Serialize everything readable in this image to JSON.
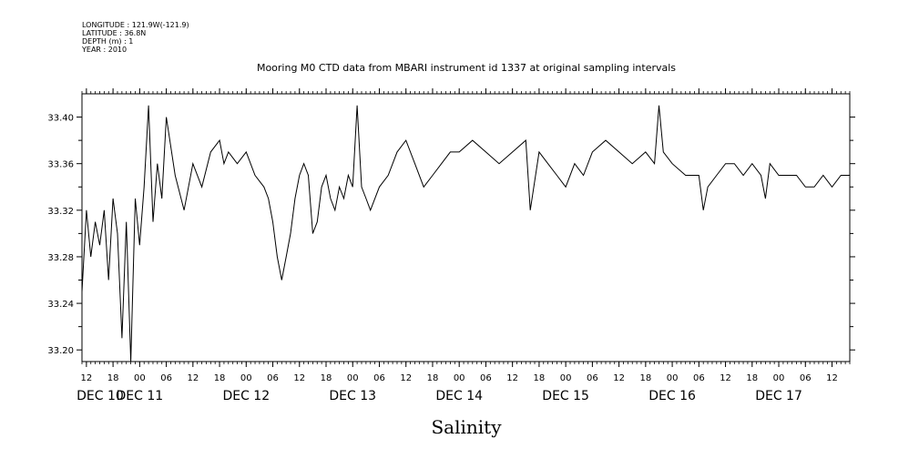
{
  "meta": {
    "longitude": "LONGITUDE : 121.9W(-121.9)",
    "latitude": "LATITUDE : 36.8N",
    "depth": "DEPTH (m) : 1",
    "year": "YEAR : 2010"
  },
  "chart_data": {
    "type": "line",
    "title": "Mooring M0 CTD data from MBARI instrument id 1337 at original sampling intervals",
    "xlabel": "Salinity",
    "ylabel": "",
    "ylim": [
      33.19,
      33.42
    ],
    "xlim": [
      "2010-12-10T11:00",
      "2010-12-17T16:00"
    ],
    "y_ticks": [
      "33.20",
      "33.24",
      "33.28",
      "33.32",
      "33.36",
      "33.40"
    ],
    "x_hour_ticks": [
      "12",
      "18",
      "00",
      "06",
      "12",
      "18",
      "00",
      "06",
      "12",
      "18",
      "00",
      "06",
      "12",
      "18",
      "00",
      "06",
      "12",
      "18",
      "00",
      "06",
      "12",
      "18",
      "00",
      "06",
      "12",
      "18",
      "00",
      "06",
      "12",
      "18",
      "00",
      "06",
      "12"
    ],
    "x_day_labels": [
      "DEC 10",
      "DEC 11",
      "DEC 12",
      "DEC 13",
      "DEC 14",
      "DEC 15",
      "DEC 16",
      "DEC 17"
    ],
    "grid": false,
    "series": [
      {
        "x": [
          "2010-12-10T11:00",
          "2010-12-10T12:00",
          "2010-12-10T13:00",
          "2010-12-10T14:00",
          "2010-12-10T15:00",
          "2010-12-10T16:00",
          "2010-12-10T17:00",
          "2010-12-10T18:00",
          "2010-12-10T19:00",
          "2010-12-10T20:00",
          "2010-12-10T21:00",
          "2010-12-10T22:00",
          "2010-12-10T23:00",
          "2010-12-11T00:00",
          "2010-12-11T01:00",
          "2010-12-11T02:00",
          "2010-12-11T03:00",
          "2010-12-11T04:00",
          "2010-12-11T05:00",
          "2010-12-11T06:00",
          "2010-12-11T08:00",
          "2010-12-11T10:00",
          "2010-12-11T12:00",
          "2010-12-11T14:00",
          "2010-12-11T16:00",
          "2010-12-11T18:00",
          "2010-12-11T19:00",
          "2010-12-11T20:00",
          "2010-12-11T22:00",
          "2010-12-12T00:00",
          "2010-12-12T02:00",
          "2010-12-12T04:00",
          "2010-12-12T05:00",
          "2010-12-12T06:00",
          "2010-12-12T07:00",
          "2010-12-12T08:00",
          "2010-12-12T09:00",
          "2010-12-12T10:00",
          "2010-12-12T11:00",
          "2010-12-12T12:00",
          "2010-12-12T13:00",
          "2010-12-12T14:00",
          "2010-12-12T15:00",
          "2010-12-12T16:00",
          "2010-12-12T17:00",
          "2010-12-12T18:00",
          "2010-12-12T19:00",
          "2010-12-12T20:00",
          "2010-12-12T21:00",
          "2010-12-12T22:00",
          "2010-12-12T23:00",
          "2010-12-13T00:00",
          "2010-12-13T01:00",
          "2010-12-13T02:00",
          "2010-12-13T03:00",
          "2010-12-13T04:00",
          "2010-12-13T06:00",
          "2010-12-13T08:00",
          "2010-12-13T10:00",
          "2010-12-13T12:00",
          "2010-12-13T14:00",
          "2010-12-13T16:00",
          "2010-12-13T18:00",
          "2010-12-13T20:00",
          "2010-12-13T22:00",
          "2010-12-14T00:00",
          "2010-12-14T03:00",
          "2010-12-14T06:00",
          "2010-12-14T09:00",
          "2010-12-14T12:00",
          "2010-12-14T15:00",
          "2010-12-14T16:00",
          "2010-12-14T18:00",
          "2010-12-14T20:00",
          "2010-12-14T22:00",
          "2010-12-15T00:00",
          "2010-12-15T02:00",
          "2010-12-15T04:00",
          "2010-12-15T06:00",
          "2010-12-15T09:00",
          "2010-12-15T12:00",
          "2010-12-15T15:00",
          "2010-12-15T18:00",
          "2010-12-15T20:00",
          "2010-12-15T21:00",
          "2010-12-15T22:00",
          "2010-12-16T00:00",
          "2010-12-16T03:00",
          "2010-12-16T06:00",
          "2010-12-16T07:00",
          "2010-12-16T08:00",
          "2010-12-16T10:00",
          "2010-12-16T12:00",
          "2010-12-16T14:00",
          "2010-12-16T16:00",
          "2010-12-16T18:00",
          "2010-12-16T20:00",
          "2010-12-16T21:00",
          "2010-12-16T22:00",
          "2010-12-17T00:00",
          "2010-12-17T02:00",
          "2010-12-17T04:00",
          "2010-12-17T06:00",
          "2010-12-17T08:00",
          "2010-12-17T10:00",
          "2010-12-17T12:00",
          "2010-12-17T14:00",
          "2010-12-17T16:00"
        ],
        "values": [
          33.25,
          33.32,
          33.28,
          33.31,
          33.29,
          33.32,
          33.26,
          33.33,
          33.3,
          33.21,
          33.31,
          33.19,
          33.33,
          33.29,
          33.34,
          33.41,
          33.31,
          33.36,
          33.33,
          33.4,
          33.35,
          33.32,
          33.36,
          33.34,
          33.37,
          33.38,
          33.36,
          33.37,
          33.36,
          33.37,
          33.35,
          33.34,
          33.33,
          33.31,
          33.28,
          33.26,
          33.28,
          33.3,
          33.33,
          33.35,
          33.36,
          33.35,
          33.3,
          33.31,
          33.34,
          33.35,
          33.33,
          33.32,
          33.34,
          33.33,
          33.35,
          33.34,
          33.41,
          33.34,
          33.33,
          33.32,
          33.34,
          33.35,
          33.37,
          33.38,
          33.36,
          33.34,
          33.35,
          33.36,
          33.37,
          33.37,
          33.38,
          33.37,
          33.36,
          33.37,
          33.38,
          33.32,
          33.37,
          33.36,
          33.35,
          33.34,
          33.36,
          33.35,
          33.37,
          33.38,
          33.37,
          33.36,
          33.37,
          33.36,
          33.41,
          33.37,
          33.36,
          33.35,
          33.35,
          33.32,
          33.34,
          33.35,
          33.36,
          33.36,
          33.35,
          33.36,
          33.35,
          33.33,
          33.36,
          33.35,
          33.35,
          33.35,
          33.34,
          33.34,
          33.35,
          33.34,
          33.35,
          33.35
        ]
      }
    ]
  }
}
